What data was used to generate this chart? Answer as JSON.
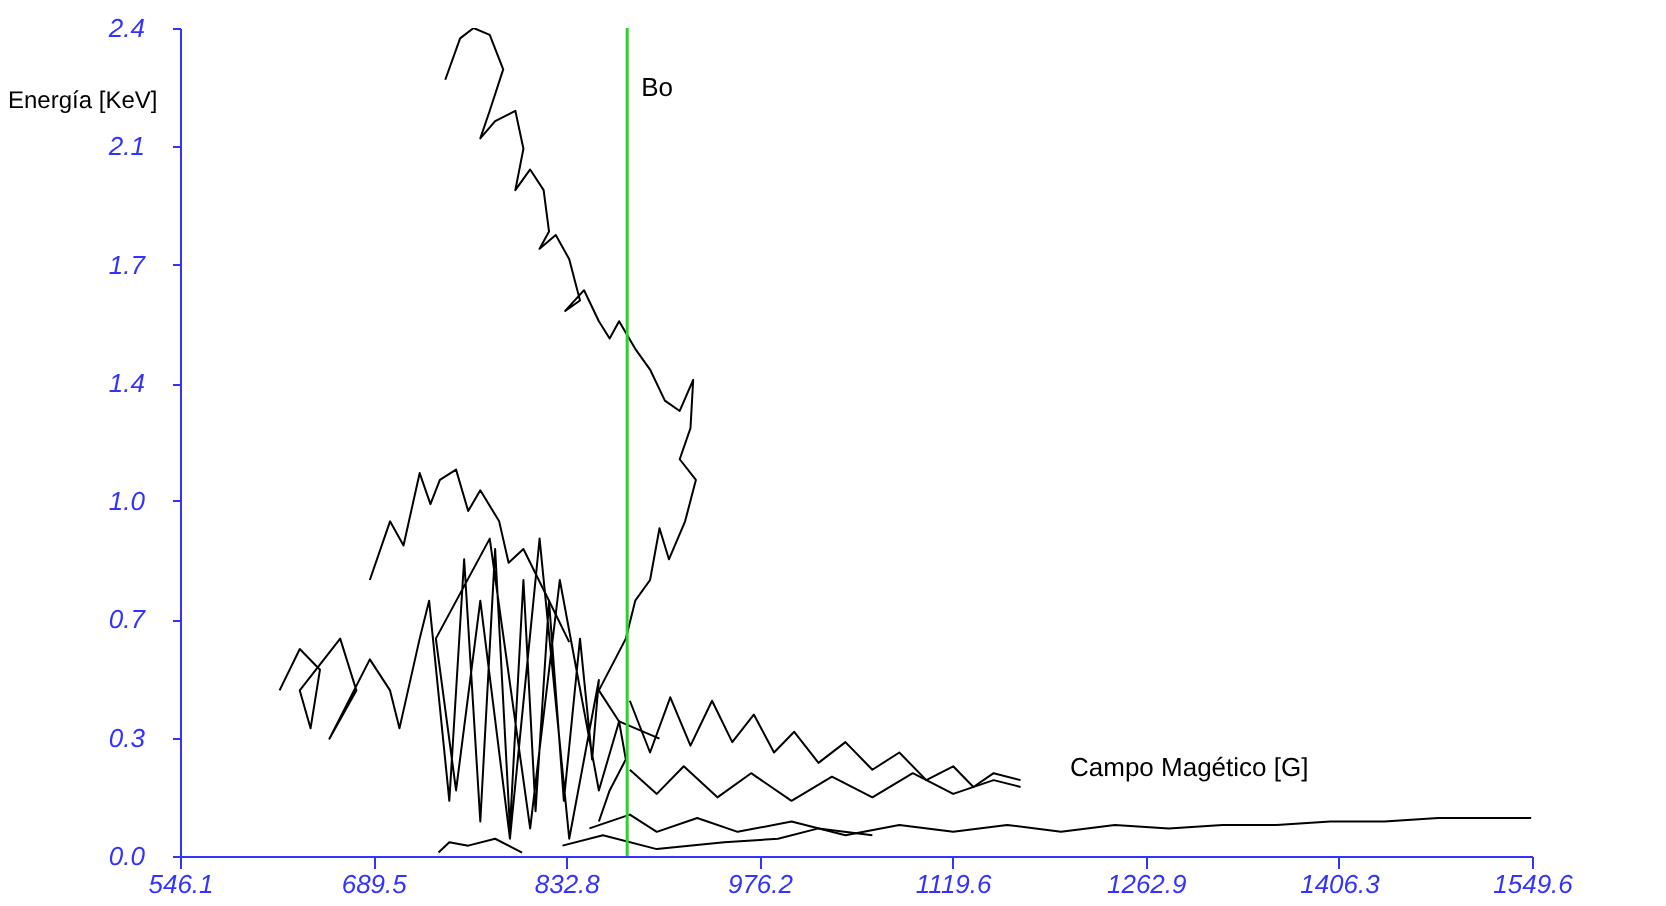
{
  "chart_data": {
    "type": "line",
    "xlabel": "Campo Magético [G]",
    "ylabel": "Energía [KeV]",
    "xlim": [
      546.1,
      1549.6
    ],
    "xticks": [
      546.1,
      689.5,
      832.8,
      976.2,
      1119.6,
      1262.9,
      1406.3,
      1549.6
    ],
    "ylim": [
      0,
      2.4
    ],
    "yticks": [
      {
        "value": 0,
        "label": "0.0"
      },
      {
        "value": 0.343,
        "label": "0.3"
      },
      {
        "value": 0.686,
        "label": "0.7"
      },
      {
        "value": 1.029,
        "label": "1.0"
      },
      {
        "value": 1.371,
        "label": "1.4"
      },
      {
        "value": 1.714,
        "label": "1.7"
      },
      {
        "value": 2.057,
        "label": "2.1"
      },
      {
        "value": 2.4,
        "label": "2.4"
      }
    ],
    "grid": false,
    "marker": "none",
    "line_style": "solid",
    "ref_lines": [
      {
        "axis": "x",
        "value": 878,
        "label": "Bo",
        "color": "#33cc33"
      }
    ],
    "series": [
      {
        "color": "#000000",
        "x": [
          743,
          754,
          764,
          776,
          786,
          776,
          769,
          780,
          795,
          801,
          795,
          806,
          816,
          820,
          813,
          825,
          835,
          843,
          832,
          846,
          857,
          865,
          872,
          884,
          895,
          906,
          917,
          927,
          925,
          917,
          929,
          921,
          909,
          902,
          895,
          884,
          877,
          869,
          857,
          872,
          877,
          865,
          857
        ],
        "values": [
          2.25,
          2.37,
          2.4,
          2.38,
          2.28,
          2.16,
          2.08,
          2.13,
          2.16,
          2.05,
          1.93,
          1.99,
          1.93,
          1.81,
          1.76,
          1.8,
          1.73,
          1.61,
          1.58,
          1.64,
          1.55,
          1.5,
          1.55,
          1.47,
          1.41,
          1.32,
          1.29,
          1.38,
          1.24,
          1.15,
          1.09,
          0.97,
          0.86,
          0.95,
          0.8,
          0.74,
          0.63,
          0.57,
          0.48,
          0.39,
          0.28,
          0.19,
          0.1
        ]
      },
      {
        "color": "#000000",
        "x": [
          687,
          702,
          712,
          724,
          732,
          739,
          751,
          760,
          769,
          783,
          790,
          801,
          820,
          835
        ],
        "values": [
          0.8,
          0.97,
          0.9,
          1.11,
          1.02,
          1.09,
          1.12,
          1.0,
          1.06,
          0.97,
          0.85,
          0.89,
          0.74,
          0.62
        ]
      },
      {
        "color": "#000000",
        "x": [
          620,
          635,
          650,
          643,
          635,
          665,
          677,
          657,
          687,
          702,
          709,
          724,
          731,
          746,
          757,
          769,
          780,
          791,
          801,
          810,
          820,
          831,
          843,
          852,
          857,
          835,
          813,
          791,
          769,
          751,
          736,
          776,
          806,
          828,
          857,
          872,
          902
        ],
        "values": [
          0.48,
          0.6,
          0.54,
          0.37,
          0.48,
          0.63,
          0.48,
          0.34,
          0.57,
          0.48,
          0.37,
          0.63,
          0.74,
          0.16,
          0.86,
          0.1,
          0.89,
          0.08,
          0.8,
          0.13,
          0.74,
          0.16,
          0.63,
          0.28,
          0.51,
          0.05,
          0.92,
          0.05,
          0.74,
          0.19,
          0.63,
          0.92,
          0.08,
          0.8,
          0.19,
          0.39,
          0.34
        ]
      },
      {
        "color": "#000000",
        "x": [
          880,
          895,
          910,
          925,
          941,
          956,
          972,
          987,
          1002,
          1020,
          1040,
          1060,
          1080,
          1100,
          1120,
          1135,
          1150,
          1170
        ],
        "values": [
          0.45,
          0.3,
          0.46,
          0.32,
          0.45,
          0.33,
          0.41,
          0.3,
          0.36,
          0.27,
          0.33,
          0.25,
          0.3,
          0.22,
          0.26,
          0.2,
          0.24,
          0.22
        ]
      },
      {
        "color": "#000000",
        "x": [
          880,
          900,
          920,
          945,
          970,
          1000,
          1030,
          1060,
          1090,
          1120,
          1150,
          1170
        ],
        "values": [
          0.25,
          0.18,
          0.26,
          0.17,
          0.24,
          0.16,
          0.23,
          0.17,
          0.24,
          0.18,
          0.22,
          0.2
        ]
      },
      {
        "color": "#000000",
        "x": [
          850,
          880,
          900,
          930,
          960,
          1000,
          1040,
          1080,
          1120,
          1160,
          1200,
          1240,
          1280,
          1320,
          1360,
          1400,
          1440,
          1480,
          1520,
          1549
        ],
        "values": [
          0.08,
          0.12,
          0.07,
          0.11,
          0.07,
          0.1,
          0.06,
          0.09,
          0.07,
          0.09,
          0.07,
          0.09,
          0.08,
          0.09,
          0.09,
          0.1,
          0.1,
          0.11,
          0.11,
          0.11
        ]
      },
      {
        "color": "#000000",
        "x": [
          830,
          860,
          900,
          950,
          990,
          1020,
          1060
        ],
        "values": [
          0.03,
          0.06,
          0.02,
          0.04,
          0.05,
          0.08,
          0.06
        ]
      },
      {
        "color": "#000000",
        "x": [
          738,
          746,
          760,
          780,
          800
        ],
        "values": [
          0.01,
          0.04,
          0.03,
          0.05,
          0.01
        ]
      }
    ]
  }
}
